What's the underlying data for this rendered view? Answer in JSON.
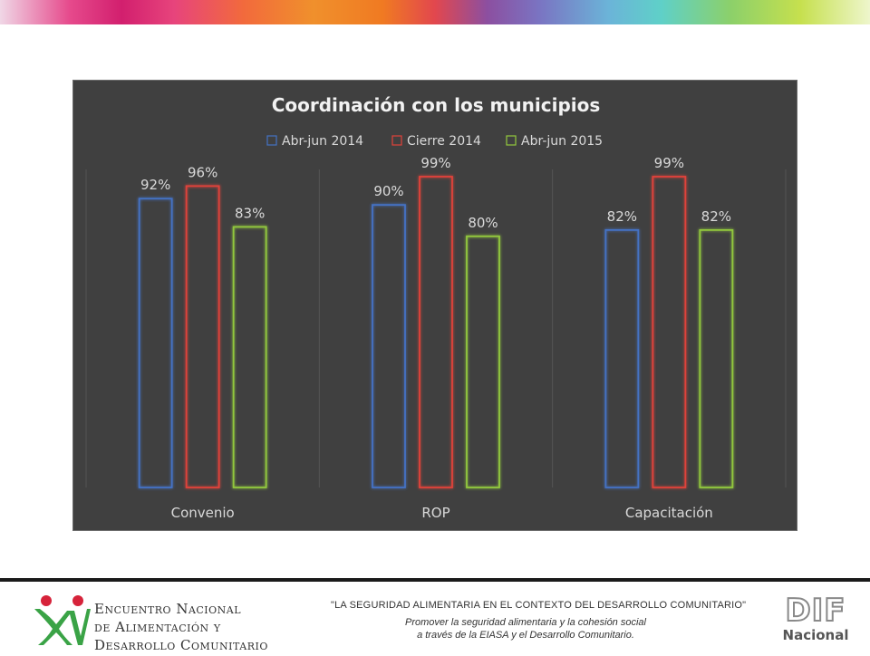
{
  "footer": {
    "event_line1": "Encuentro Nacional",
    "event_line2": "de Alimentación y",
    "event_line3": "Desarrollo Comunitario",
    "event_mark": "XV",
    "slogan": "\"LA SEGURIDAD ALIMENTARIA EN EL CONTEXTO DEL DESARROLLO COMUNITARIO\"",
    "slogan_sub1": "Promover la seguridad alimentaria y la cohesión social",
    "slogan_sub2": "a través de la EIASA y el Desarrollo Comunitario.",
    "dif_letters": "DIF",
    "dif_nacional": "Nacional"
  },
  "colors": {
    "panel_background": "#404040",
    "series": [
      "#4472c4",
      "#e0423a",
      "#92c83e"
    ]
  },
  "chart_data": {
    "type": "bar",
    "title": "Coordinación con los municipios",
    "categories": [
      "Convenio",
      "ROP",
      "Capacitación"
    ],
    "series": [
      {
        "name": "Abr-jun 2014",
        "values": [
          92,
          90,
          82
        ],
        "labels": [
          "92%",
          "90%",
          "82%"
        ]
      },
      {
        "name": "Cierre 2014",
        "values": [
          96,
          99,
          99
        ],
        "labels": [
          "96%",
          "99%",
          "99%"
        ]
      },
      {
        "name": "Abr-jun 2015",
        "values": [
          83,
          80,
          82
        ],
        "labels": [
          "83%",
          "80%",
          "82%"
        ]
      }
    ],
    "ylim": [
      0,
      100
    ],
    "legend": "top",
    "grid": false,
    "style": "outlined-glow"
  }
}
